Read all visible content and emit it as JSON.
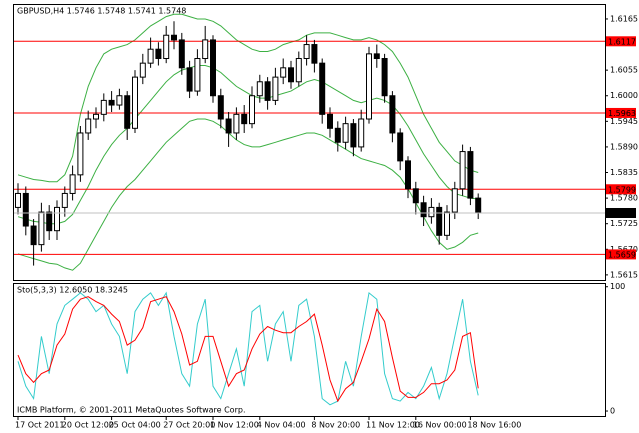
{
  "chart_data": [
    {
      "type": "candlestick",
      "title": "GBPUSD,H4 1.5746 1.5748 1.5741 1.5748",
      "categories": [
        "17 Oct 2011",
        null,
        null,
        null,
        null,
        null,
        "20 Oct 12:00",
        null,
        null,
        null,
        null,
        null,
        "25 Oct 04:00",
        null,
        null,
        null,
        null,
        null,
        null,
        "27 Oct 20:00",
        null,
        null,
        null,
        null,
        null,
        "1 Nov 12:00",
        null,
        null,
        null,
        null,
        null,
        "4 Nov 04:00",
        null,
        null,
        null,
        null,
        null,
        null,
        "8 Nov 20:00",
        null,
        null,
        null,
        null,
        null,
        null,
        "11 Nov 12:00",
        null,
        null,
        null,
        null,
        null,
        "16 Nov 00:00",
        null,
        null,
        null,
        null,
        null,
        null,
        "18 Nov 16:00",
        null
      ],
      "ohlc": {
        "open": [
          1.576,
          1.579,
          1.572,
          1.568,
          1.575,
          1.571,
          1.576,
          1.579,
          1.583,
          1.592,
          1.595,
          1.596,
          1.599,
          1.598,
          1.6,
          1.593,
          1.604,
          1.607,
          1.61,
          1.608,
          1.613,
          1.612,
          1.606,
          1.601,
          1.608,
          1.612,
          1.6,
          1.595,
          1.592,
          1.596,
          1.594,
          1.6,
          1.603,
          1.599,
          1.604,
          1.606,
          1.603,
          1.608,
          1.611,
          1.607,
          1.596,
          1.593,
          1.59,
          1.594,
          1.589,
          1.595,
          1.609,
          1.608,
          1.6,
          1.592,
          1.586,
          1.58,
          1.577,
          1.574,
          1.576,
          1.57,
          1.575,
          1.58,
          1.588,
          1.578
        ],
        "high": [
          1.5812,
          1.5805,
          1.5735,
          1.577,
          1.5765,
          1.5775,
          1.5805,
          1.585,
          1.5935,
          1.5968,
          1.5975,
          1.6005,
          1.601,
          1.6015,
          1.601,
          1.6055,
          1.609,
          1.6125,
          1.6115,
          1.615,
          1.616,
          1.6135,
          1.6075,
          1.61,
          1.615,
          1.613,
          1.6015,
          1.5965,
          1.5975,
          1.598,
          1.602,
          1.6045,
          1.604,
          1.606,
          1.608,
          1.6075,
          1.6095,
          1.613,
          1.612,
          1.608,
          1.5975,
          1.5945,
          1.5955,
          1.595,
          1.597,
          1.6105,
          1.611,
          1.609,
          1.601,
          1.593,
          1.587,
          1.5815,
          1.5785,
          1.578,
          1.577,
          1.5765,
          1.5815,
          1.5895,
          1.589,
          1.579
        ],
        "low": [
          1.5745,
          1.57,
          1.5635,
          1.5665,
          1.569,
          1.569,
          1.574,
          1.5775,
          1.5815,
          1.5905,
          1.593,
          1.5945,
          1.5965,
          1.597,
          1.5905,
          1.592,
          1.6025,
          1.606,
          1.6065,
          1.607,
          1.61,
          1.6045,
          1.5995,
          1.6,
          1.607,
          1.5985,
          1.593,
          1.589,
          1.5905,
          1.592,
          1.593,
          1.5985,
          1.597,
          1.598,
          1.6025,
          1.6015,
          1.602,
          1.6065,
          1.605,
          1.594,
          1.591,
          1.588,
          1.5885,
          1.587,
          1.588,
          1.594,
          1.606,
          1.5985,
          1.59,
          1.584,
          1.578,
          1.5745,
          1.572,
          1.5725,
          1.568,
          1.569,
          1.5735,
          1.5785,
          1.5765,
          1.5735
        ],
        "close": [
          1.579,
          1.572,
          1.568,
          1.575,
          1.571,
          1.576,
          1.579,
          1.583,
          1.592,
          1.595,
          1.596,
          1.599,
          1.598,
          1.6,
          1.593,
          1.604,
          1.607,
          1.61,
          1.608,
          1.613,
          1.612,
          1.606,
          1.601,
          1.608,
          1.612,
          1.6,
          1.595,
          1.592,
          1.596,
          1.594,
          1.6,
          1.603,
          1.599,
          1.604,
          1.606,
          1.603,
          1.608,
          1.611,
          1.607,
          1.596,
          1.593,
          1.59,
          1.594,
          1.589,
          1.595,
          1.609,
          1.608,
          1.6,
          1.592,
          1.586,
          1.58,
          1.577,
          1.574,
          1.576,
          1.57,
          1.575,
          1.58,
          1.588,
          1.578,
          1.5748
        ]
      },
      "bands": {
        "color": "#3cb043",
        "upper": [
          1.583,
          1.5825,
          1.582,
          1.5818,
          1.5815,
          1.5815,
          1.583,
          1.587,
          1.596,
          1.602,
          1.606,
          1.609,
          1.61,
          1.6105,
          1.611,
          1.612,
          1.6135,
          1.615,
          1.616,
          1.617,
          1.6175,
          1.6175,
          1.617,
          1.6165,
          1.6165,
          1.616,
          1.615,
          1.6135,
          1.612,
          1.611,
          1.61,
          1.6095,
          1.6095,
          1.61,
          1.611,
          1.6115,
          1.612,
          1.613,
          1.6135,
          1.6135,
          1.6135,
          1.613,
          1.6125,
          1.612,
          1.612,
          1.6125,
          1.612,
          1.611,
          1.6095,
          1.607,
          1.604,
          1.6,
          1.596,
          1.593,
          1.59,
          1.588,
          1.586,
          1.585,
          1.584,
          1.5835
        ],
        "middle": [
          1.574,
          1.5735,
          1.573,
          1.5728,
          1.5725,
          1.5725,
          1.573,
          1.5745,
          1.5775,
          1.5805,
          1.584,
          1.587,
          1.5895,
          1.5915,
          1.593,
          1.595,
          1.597,
          1.599,
          1.601,
          1.603,
          1.6045,
          1.6055,
          1.606,
          1.6065,
          1.6065,
          1.606,
          1.605,
          1.6035,
          1.602,
          1.601,
          1.6,
          1.5995,
          1.5995,
          1.6,
          1.6005,
          1.601,
          1.602,
          1.603,
          1.6035,
          1.603,
          1.602,
          1.601,
          1.6,
          1.599,
          1.5985,
          1.599,
          1.5995,
          1.599,
          1.598,
          1.596,
          1.5935,
          1.5905,
          1.5875,
          1.585,
          1.5825,
          1.5805,
          1.579,
          1.5785,
          1.578,
          1.5778
        ],
        "lower": [
          1.566,
          1.5655,
          1.565,
          1.5645,
          1.564,
          1.5638,
          1.563,
          1.5625,
          1.564,
          1.567,
          1.57,
          1.573,
          1.576,
          1.5785,
          1.5805,
          1.582,
          1.584,
          1.586,
          1.588,
          1.59,
          1.5915,
          1.593,
          1.5945,
          1.595,
          1.595,
          1.5945,
          1.5935,
          1.592,
          1.5905,
          1.5895,
          1.589,
          1.589,
          1.5895,
          1.59,
          1.5905,
          1.591,
          1.5915,
          1.592,
          1.592,
          1.5915,
          1.5905,
          1.5895,
          1.5885,
          1.5875,
          1.5865,
          1.586,
          1.5855,
          1.585,
          1.584,
          1.5825,
          1.58,
          1.577,
          1.574,
          1.571,
          1.5685,
          1.567,
          1.5675,
          1.5685,
          1.57,
          1.5705
        ]
      },
      "levels": [
        1.6117,
        1.5963,
        1.5799,
        1.5659
      ],
      "level_color": "#ff0000",
      "last_price": 1.5748,
      "ylim": [
        1.5604,
        1.6195
      ],
      "yticks": [
        1.6165,
        1.6055,
        {
          "value": 1.6,
          "label": "1.6000"
        },
        1.5945,
        {
          "value": 1.589,
          "label": "1.5890"
        },
        1.5835,
        {
          "value": 1.578,
          "label": "1.5780"
        },
        1.5725,
        {
          "value": 1.567,
          "label": "1.5670"
        },
        1.5615
      ],
      "grid": false
    },
    {
      "type": "line",
      "title": "Sto(5,3,3) 12.6050 18.3245",
      "series": [
        {
          "color": "#33cccc",
          "values": [
            40,
            20,
            10,
            60,
            30,
            70,
            85,
            90,
            95,
            90,
            80,
            85,
            70,
            60,
            30,
            80,
            90,
            95,
            85,
            95,
            60,
            30,
            20,
            70,
            90,
            20,
            10,
            30,
            50,
            20,
            80,
            85,
            40,
            70,
            80,
            40,
            85,
            90,
            60,
            10,
            5,
            8,
            40,
            20,
            60,
            95,
            90,
            30,
            10,
            8,
            15,
            10,
            20,
            35,
            10,
            30,
            60,
            90,
            40,
            12.605
          ]
        },
        {
          "color": "#ff0000",
          "values": [
            45,
            30,
            23,
            30,
            33,
            53,
            62,
            82,
            90,
            92,
            88,
            85,
            78,
            72,
            53,
            57,
            67,
            88,
            90,
            92,
            80,
            62,
            37,
            40,
            60,
            60,
            40,
            20,
            30,
            33,
            50,
            62,
            68,
            65,
            63,
            63,
            68,
            72,
            78,
            53,
            25,
            8,
            18,
            23,
            40,
            58,
            82,
            72,
            43,
            16,
            11,
            11,
            15,
            22,
            22,
            25,
            33,
            60,
            63,
            18.3245
          ]
        }
      ],
      "ylim": [
        -4,
        103
      ],
      "yticks": [
        100,
        0
      ],
      "grid": false
    }
  ],
  "footer": "ICMB Platform, © 2001-2011 MetaQuotes Software Corp."
}
